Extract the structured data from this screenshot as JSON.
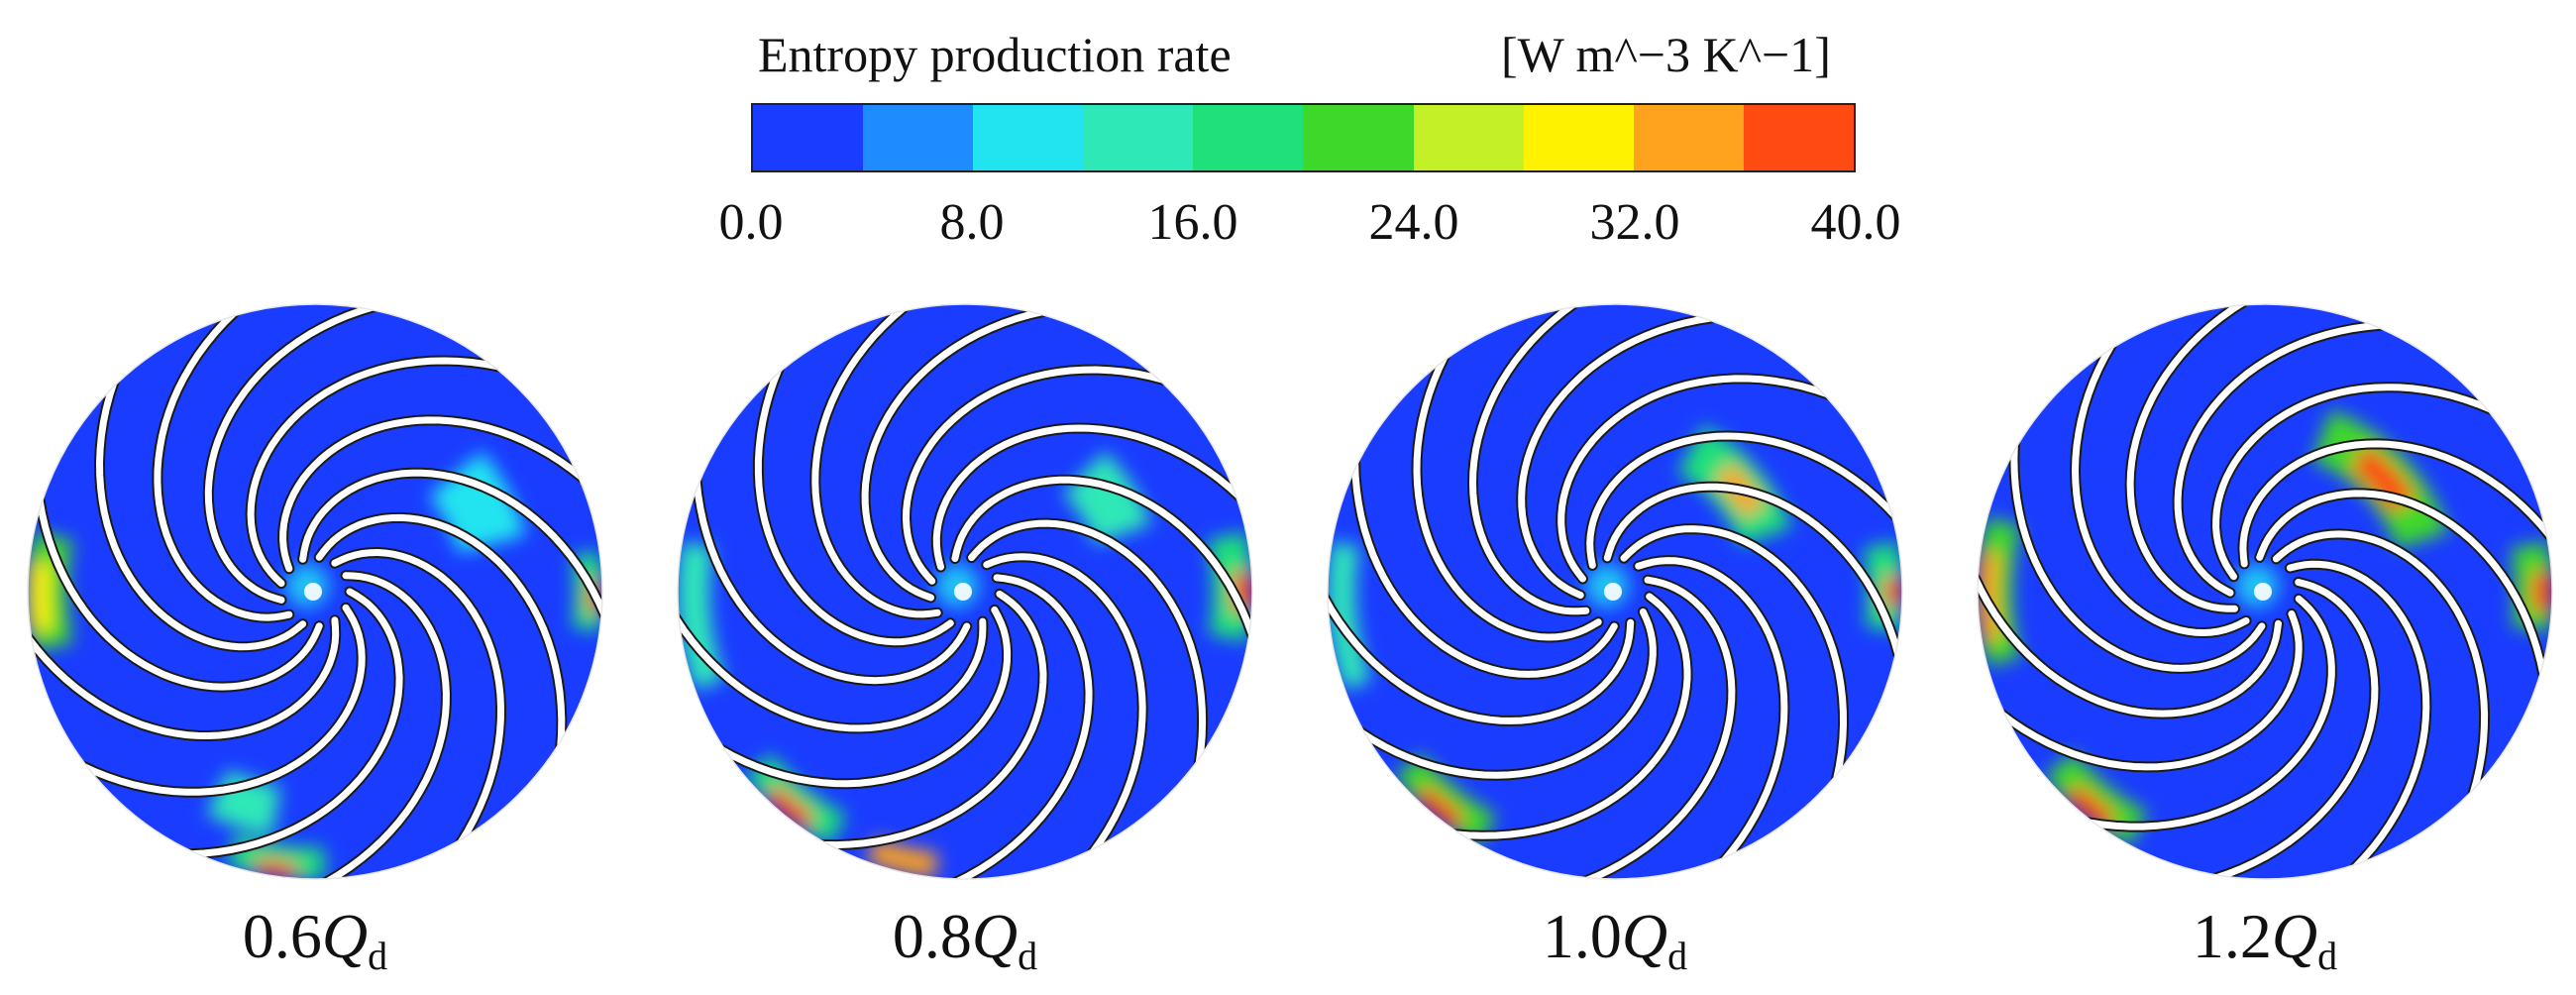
{
  "legend": {
    "title": "Entropy production rate",
    "unit": "[W m^−3 K^−1]",
    "colors": [
      "#1a3cff",
      "#1e8cff",
      "#22e4f0",
      "#2ee8b8",
      "#1fe07a",
      "#3ed82a",
      "#c4f028",
      "#fff200",
      "#ffa21e",
      "#ff4a12"
    ],
    "ticks": [
      "0.0",
      "8.0",
      "16.0",
      "24.0",
      "32.0",
      "40.0"
    ],
    "min": 0,
    "max": 40
  },
  "panels": [
    {
      "prefix": "0.6",
      "symbol": "Q",
      "subscript": "d"
    },
    {
      "prefix": "0.8",
      "symbol": "Q",
      "subscript": "d"
    },
    {
      "prefix": "1.0",
      "symbol": "Q",
      "subscript": "d"
    },
    {
      "prefix": "1.2",
      "symbol": "Q",
      "subscript": "d"
    }
  ]
}
